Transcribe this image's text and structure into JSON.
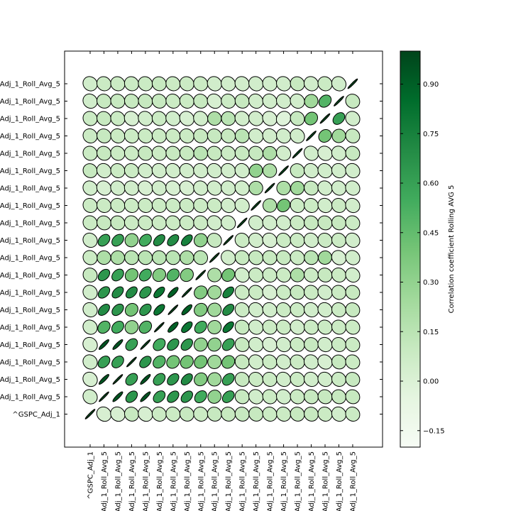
{
  "chart_data": {
    "type": "heatmap",
    "variant": "correlation-ellipse-matrix",
    "title": "",
    "colorbar": {
      "label": "Correlation coefficient Rolling AVG 5",
      "range": [
        -0.2,
        1.0
      ],
      "ticks": [
        -0.15,
        0.0,
        0.15,
        0.3,
        0.45,
        0.6,
        0.75,
        0.9
      ],
      "tick_labels": [
        "−0.15",
        "0.00",
        "0.15",
        "0.30",
        "0.45",
        "0.60",
        "0.75",
        "0.90"
      ],
      "colormap": "Greens"
    },
    "x_tick_labels": [
      "^GSPC_Adj_1",
      "Adj_1_Roll_Avg_5",
      "Adj_1_Roll_Avg_5",
      "Adj_1_Roll_Avg_5",
      "Adj_1_Roll_Avg_5",
      "Adj_1_Roll_Avg_5",
      "Adj_1_Roll_Avg_5",
      "Adj_1_Roll_Avg_5",
      "Adj_1_Roll_Avg_5",
      "Adj_1_Roll_Avg_5",
      "Adj_1_Roll_Avg_5",
      "Adj_1_Roll_Avg_5",
      "Adj_1_Roll_Avg_5",
      "Adj_1_Roll_Avg_5",
      "Adj_1_Roll_Avg_5",
      "Adj_1_Roll_Avg_5",
      "Adj_1_Roll_Avg_5",
      "Adj_1_Roll_Avg_5",
      "Adj_1_Roll_Avg_5",
      "Adj_1_Roll_Avg_5"
    ],
    "y_tick_labels_top_to_bottom": [
      "Adj_1_Roll_Avg_5",
      "Adj_1_Roll_Avg_5",
      "Adj_1_Roll_Avg_5",
      "Adj_1_Roll_Avg_5",
      "Adj_1_Roll_Avg_5",
      "Adj_1_Roll_Avg_5",
      "Adj_1_Roll_Avg_5",
      "Adj_1_Roll_Avg_5",
      "Adj_1_Roll_Avg_5",
      "Adj_1_Roll_Avg_5",
      "Adj_1_Roll_Avg_5",
      "Adj_1_Roll_Avg_5",
      "Adj_1_Roll_Avg_5",
      "Adj_1_Roll_Avg_5",
      "Adj_1_Roll_Avg_5",
      "Adj_1_Roll_Avg_5",
      "Adj_1_Roll_Avg_5",
      "Adj_1_Roll_Avg_5",
      "Adj_1_Roll_Avg_5",
      "^GSPC_Adj_1"
    ],
    "matrix_rows_top_to_bottom": [
      [
        0.05,
        0.08,
        0.08,
        0.08,
        0.08,
        0.1,
        0.08,
        0.08,
        0.08,
        0.05,
        0.05,
        0.05,
        0.05,
        0.05,
        0.05,
        0.1,
        0.05,
        0.08,
        0.05,
        1
      ],
      [
        0.05,
        0.1,
        0.1,
        0.1,
        0.1,
        0.1,
        0.08,
        0.08,
        0.1,
        0.02,
        0.08,
        0.1,
        0.05,
        0.05,
        0.05,
        0.05,
        0.25,
        0.5,
        1,
        0.1
      ],
      [
        0.08,
        0.1,
        0.08,
        0.02,
        0.05,
        0.08,
        0.05,
        0.02,
        0.05,
        0.2,
        0.15,
        0.05,
        0.05,
        0.02,
        -0.02,
        0.1,
        0.4,
        1,
        0.6,
        0.05
      ],
      [
        0.08,
        0.1,
        0.08,
        0.08,
        0.08,
        0.08,
        0.08,
        0.08,
        0.1,
        0.1,
        0.1,
        0.15,
        0.05,
        0.05,
        0.05,
        0.05,
        1,
        0.4,
        0.25,
        0.1
      ],
      [
        0.08,
        0.1,
        0.08,
        0.08,
        0.1,
        0.08,
        0.1,
        0.1,
        0.15,
        0.1,
        0.08,
        0.1,
        0.1,
        0.2,
        0.05,
        1,
        0.05,
        0.02,
        0.05,
        0.1
      ],
      [
        0.1,
        0.05,
        0.08,
        0.08,
        0.05,
        0.05,
        0.05,
        0.05,
        0.05,
        0.05,
        0.05,
        0.05,
        0.3,
        0.2,
        1,
        0.1,
        0.05,
        0.05,
        0.05,
        0.05
      ],
      [
        0.05,
        0.02,
        0.05,
        0.05,
        0.02,
        0.05,
        0.02,
        0.02,
        0.05,
        0.05,
        0.05,
        0.05,
        0.2,
        1,
        0.2,
        0.25,
        0.1,
        0.05,
        0.05,
        0.05
      ],
      [
        0.08,
        0.08,
        0.08,
        0.08,
        0.08,
        0.08,
        0.08,
        0.08,
        0.08,
        0.08,
        0.05,
        0.05,
        1,
        0.2,
        0.4,
        0.08,
        0.08,
        0.05,
        0.08,
        0.05
      ],
      [
        0.08,
        0.1,
        0.1,
        0.08,
        0.08,
        0.08,
        0.08,
        0.08,
        0.08,
        0.05,
        0.05,
        1,
        0.05,
        0.05,
        0.05,
        0.08,
        0.1,
        0.1,
        0.1,
        0.08
      ],
      [
        0.05,
        0.6,
        0.6,
        0.3,
        0.55,
        0.7,
        0.7,
        0.75,
        0.3,
        0.1,
        1,
        0.08,
        0.05,
        0.02,
        0.08,
        0.08,
        0.05,
        0.08,
        0.08,
        0.05
      ],
      [
        0.08,
        0.2,
        0.2,
        0.15,
        0.15,
        0.15,
        0.15,
        0.2,
        0.15,
        1,
        0.05,
        0.1,
        0.1,
        0.1,
        0.1,
        0.08,
        0.15,
        0.25,
        0.02,
        0.05
      ],
      [
        0.1,
        0.65,
        0.6,
        0.4,
        0.55,
        0.35,
        0.5,
        0.35,
        1,
        0.2,
        0.4,
        0.05,
        0.08,
        0.08,
        0.08,
        0.2,
        0.08,
        0.1,
        0.08,
        0.05
      ],
      [
        0.05,
        0.65,
        0.7,
        0.7,
        0.65,
        0.8,
        0.9,
        1,
        0.35,
        0.25,
        0.75,
        0.08,
        0.08,
        0.02,
        0.08,
        0.1,
        0.08,
        0.05,
        0.08,
        0.1
      ],
      [
        0.05,
        0.7,
        0.65,
        0.4,
        0.65,
        0.8,
        1,
        0.9,
        0.35,
        0.25,
        0.7,
        0.08,
        0.05,
        0.05,
        0.08,
        0.08,
        0.05,
        0.05,
        0.08,
        0.1
      ],
      [
        0.05,
        0.5,
        0.55,
        0.3,
        0.5,
        1,
        0.9,
        0.8,
        0.55,
        0.25,
        0.8,
        0.1,
        0.05,
        0.08,
        0.08,
        0.05,
        0.08,
        0.08,
        0.08,
        0.08
      ],
      [
        0.02,
        0.95,
        0.95,
        0.6,
        1,
        0.55,
        0.65,
        0.65,
        0.3,
        0.3,
        0.6,
        0.1,
        0.05,
        0.02,
        0.05,
        0.08,
        0.1,
        0.05,
        0.08,
        0.08
      ],
      [
        0.05,
        0.6,
        0.6,
        1,
        0.65,
        0.5,
        0.4,
        0.4,
        0.4,
        0.25,
        0.4,
        0.1,
        0.05,
        0.08,
        0.05,
        0.08,
        0.05,
        0.02,
        0.1,
        0.08
      ],
      [
        0.02,
        0.95,
        1,
        0.6,
        0.95,
        0.6,
        0.65,
        0.7,
        0.35,
        0.25,
        0.6,
        0.1,
        0.08,
        0.08,
        0.05,
        0.08,
        0.05,
        0.05,
        0.08,
        0.1
      ],
      [
        0.05,
        1,
        0.95,
        0.65,
        0.95,
        0.6,
        0.65,
        0.65,
        0.55,
        0.3,
        0.6,
        0.1,
        0.05,
        0.08,
        0.05,
        0.08,
        0.1,
        0.1,
        0.1,
        0.1
      ],
      [
        1,
        0.02,
        0.02,
        0.1,
        0.02,
        0.08,
        0.08,
        0.1,
        0.08,
        0.1,
        0.1,
        0.1,
        0.1,
        0.08,
        0.08,
        0.1,
        0.1,
        0.08,
        0.05,
        0.08
      ]
    ]
  }
}
